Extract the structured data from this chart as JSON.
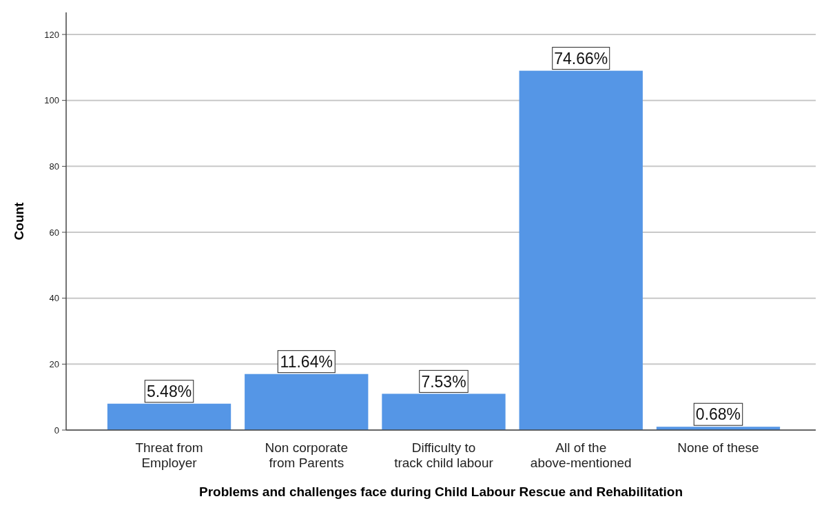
{
  "chart_data": {
    "type": "bar",
    "xlabel": "Problems and challenges face during Child Labour Rescue and Rehabilitation",
    "ylabel": "Count",
    "categories": [
      "Threat from Employer",
      "Non corporate from Parents",
      "Difficulty to track child labour",
      "All of the above-mentioned",
      "None of these"
    ],
    "values": [
      8,
      17,
      11,
      109,
      1
    ],
    "annotations": [
      {
        "text": "5.48%",
        "x": "Threat from Employer",
        "y": 8
      },
      {
        "text": "11.64%",
        "x": "Non corporate from Parents",
        "y": 17
      },
      {
        "text": "7.53%",
        "x": "Difficulty to track child labour",
        "y": 11
      },
      {
        "text": "74.66%",
        "x": "All of the above-mentioned",
        "y": 109
      },
      {
        "text": "0.68%",
        "x": "None of these",
        "y": 1
      }
    ],
    "color": "#5596e6",
    "ylim": [
      0,
      120
    ],
    "yticks": [
      0,
      20,
      40,
      60,
      80,
      100,
      120
    ],
    "grid": "y"
  }
}
